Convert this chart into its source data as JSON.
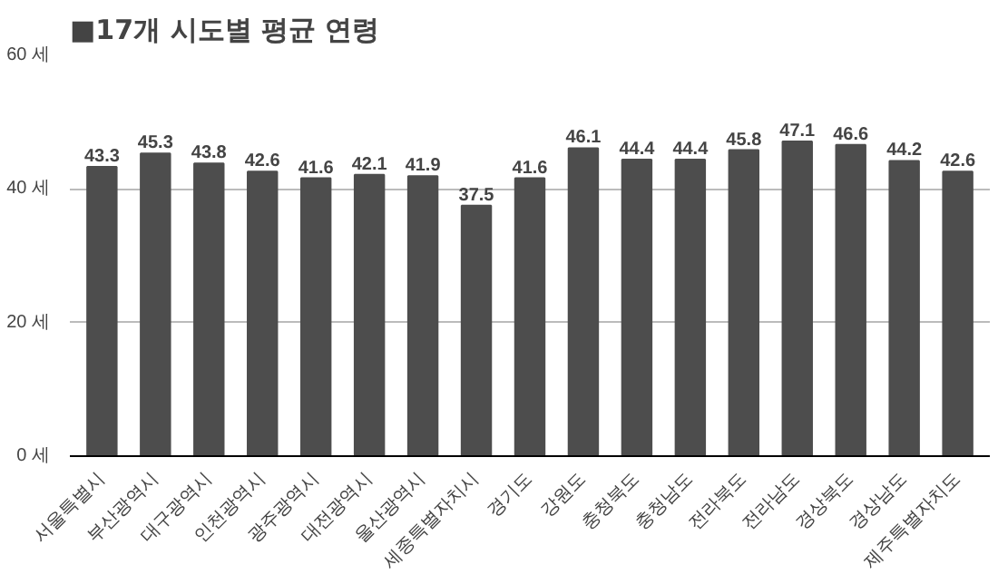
{
  "chart_data": {
    "type": "bar",
    "title": "■17개 시도별 평균 연령",
    "categories": [
      "서울특별시",
      "부산광역시",
      "대구광역시",
      "인천광역시",
      "광주광역시",
      "대전광역시",
      "울산광역시",
      "세종특별자치시",
      "경기도",
      "강원도",
      "충청북도",
      "충청남도",
      "전라북도",
      "전라남도",
      "경상북도",
      "경상남도",
      "제주특별자치도"
    ],
    "values": [
      43.3,
      45.3,
      43.8,
      42.6,
      41.6,
      42.1,
      41.9,
      37.5,
      41.6,
      46.1,
      44.4,
      44.4,
      45.8,
      47.1,
      46.6,
      44.2,
      42.6
    ],
    "color": "#4d4d4d",
    "data_labels": true,
    "ylim": [
      0,
      60
    ],
    "yticks": [
      {
        "value": 0,
        "label": "0 세"
      },
      {
        "value": 20,
        "label": "20 세"
      },
      {
        "value": 40,
        "label": "40 세"
      },
      {
        "value": 60,
        "label": "60 세"
      }
    ],
    "grid": "y"
  }
}
